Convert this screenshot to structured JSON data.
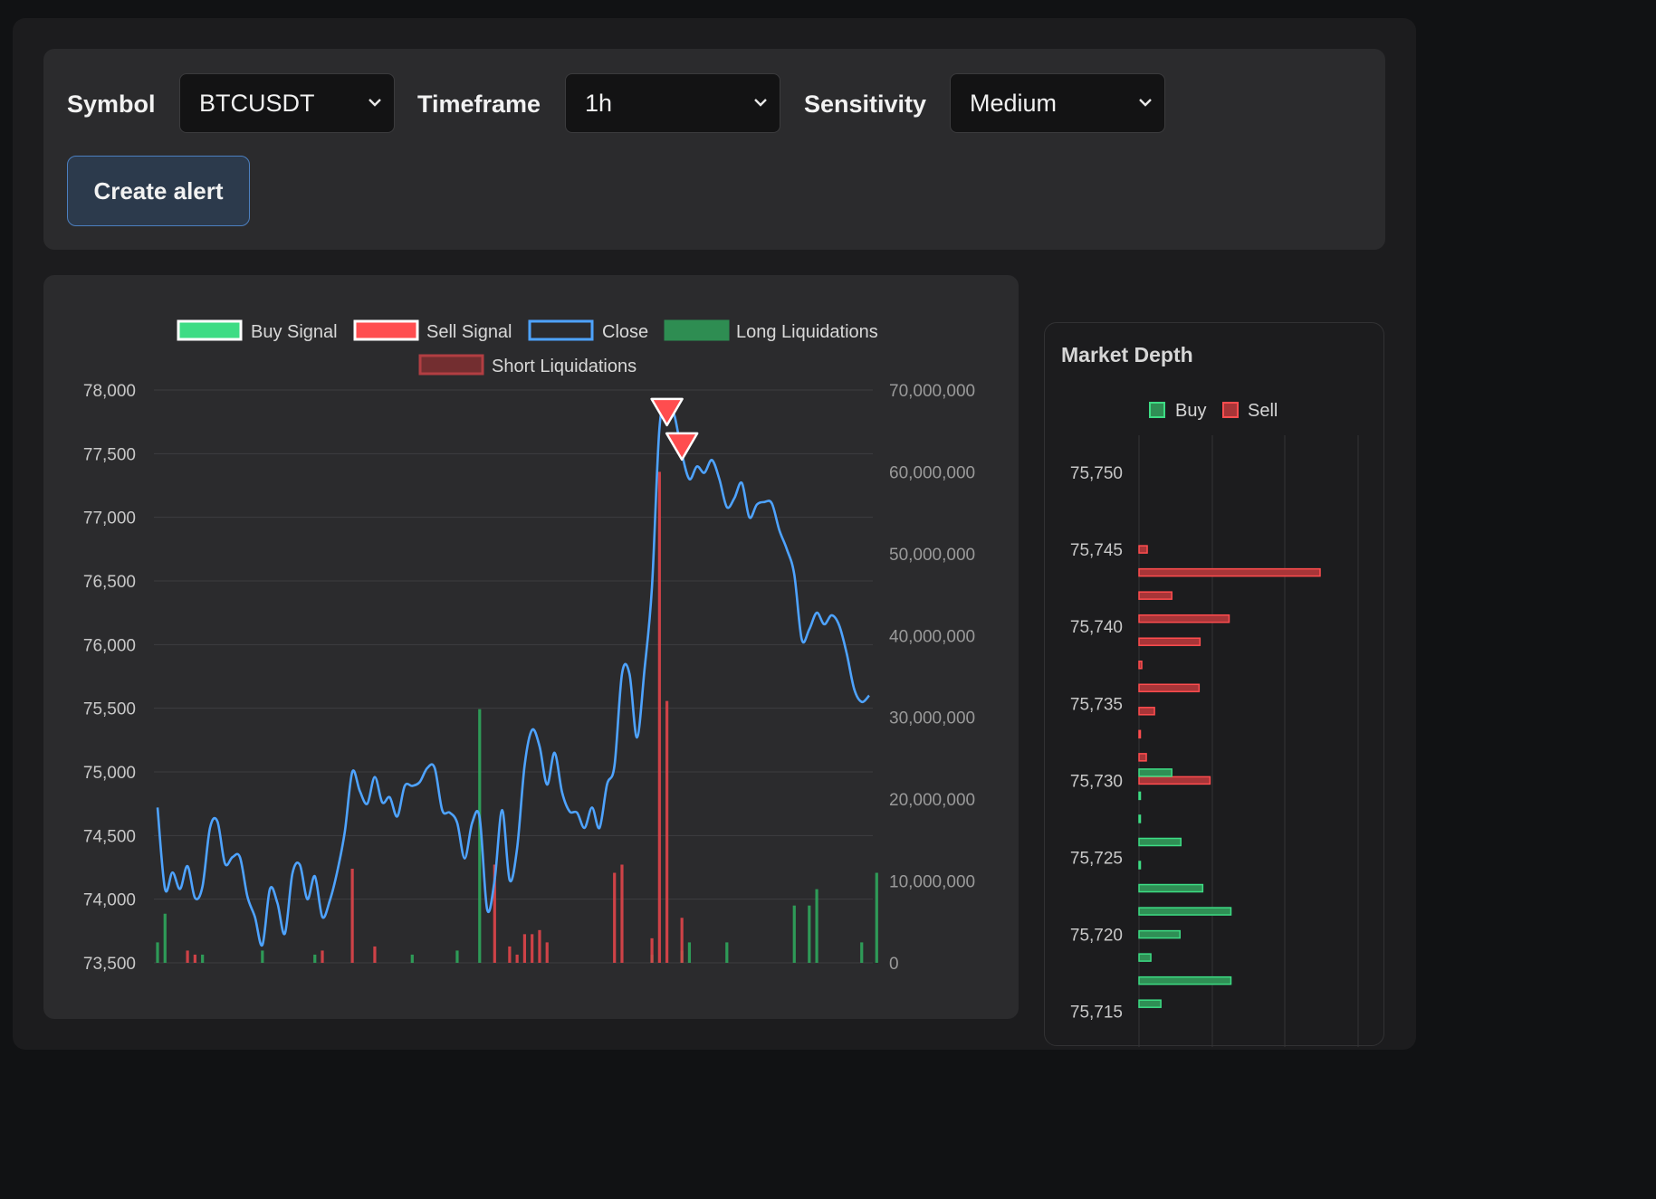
{
  "controls": {
    "symbol_label": "Symbol",
    "symbol_value": "BTCUSDT",
    "timeframe_label": "Timeframe",
    "timeframe_value": "1h",
    "sensitivity_label": "Sensitivity",
    "sensitivity_value": "Medium",
    "create_alert_label": "Create alert"
  },
  "colors": {
    "buy": "#3ddc84",
    "sell": "#ff4d4f",
    "close": "#4ea3ff",
    "long_liq": "#2fae5f",
    "short_liq": "#e0454a",
    "grid": "#3e3e40",
    "tick": "#c8c8c8"
  },
  "chart_data": {
    "type": "line",
    "legend": [
      "Buy Signal",
      "Sell Signal",
      "Close",
      "Long Liquidations",
      "Short Liquidations"
    ],
    "y_left": {
      "min": 73500,
      "max": 78000,
      "ticks": [
        "78,000",
        "77,500",
        "77,000",
        "76,500",
        "76,000",
        "75,500",
        "75,000",
        "74,500",
        "74,000",
        "73,500"
      ]
    },
    "y_right": {
      "min": 0,
      "max": 70000000,
      "ticks": [
        "70,000,000",
        "60,000,000",
        "50,000,000",
        "40,000,000",
        "30,000,000",
        "20,000,000",
        "10,000,000",
        "0"
      ]
    },
    "close": [
      74720,
      74080,
      74210,
      74080,
      74260,
      74010,
      74100,
      74560,
      74610,
      74280,
      74330,
      74330,
      74020,
      73860,
      73640,
      74080,
      73970,
      73730,
      74200,
      74270,
      74000,
      74180,
      73860,
      73990,
      74220,
      74530,
      75000,
      74850,
      74750,
      74960,
      74760,
      74800,
      74650,
      74890,
      74890,
      74920,
      75030,
      75030,
      74700,
      74680,
      74600,
      74320,
      74600,
      74640,
      73920,
      74150,
      74700,
      74150,
      74400,
      75050,
      75330,
      75200,
      74900,
      75150,
      74840,
      74690,
      74680,
      74560,
      74720,
      74560,
      74900,
      75050,
      75770,
      75770,
      75270,
      75800,
      76450,
      77700,
      77900,
      77800,
      77500,
      77300,
      77400,
      77350,
      77450,
      77300,
      77080,
      77150,
      77270,
      77000,
      77100,
      77120,
      77110,
      76900,
      76750,
      76550,
      76040,
      76120,
      76250,
      76160,
      76230,
      76150,
      75930,
      75650,
      75550,
      75600
    ],
    "sell_signals": [
      {
        "index": 68,
        "price": 77830
      },
      {
        "index": 70,
        "price": 77560
      }
    ],
    "long_liquidations": [
      {
        "index": 0,
        "value": 2500000
      },
      {
        "index": 1,
        "value": 6000000
      },
      {
        "index": 6,
        "value": 1000000
      },
      {
        "index": 14,
        "value": 1500000
      },
      {
        "index": 21,
        "value": 1000000
      },
      {
        "index": 34,
        "value": 1000000
      },
      {
        "index": 40,
        "value": 1500000
      },
      {
        "index": 43,
        "value": 31000000
      },
      {
        "index": 66,
        "value": 1000000
      },
      {
        "index": 70,
        "value": 1500000
      },
      {
        "index": 71,
        "value": 2500000
      },
      {
        "index": 76,
        "value": 2500000
      },
      {
        "index": 85,
        "value": 7000000
      },
      {
        "index": 87,
        "value": 7000000
      },
      {
        "index": 88,
        "value": 9000000
      },
      {
        "index": 94,
        "value": 2500000
      },
      {
        "index": 96,
        "value": 11000000
      }
    ],
    "short_liquidations": [
      {
        "index": 4,
        "value": 1500000
      },
      {
        "index": 5,
        "value": 1000000
      },
      {
        "index": 22,
        "value": 1500000
      },
      {
        "index": 26,
        "value": 11500000
      },
      {
        "index": 29,
        "value": 2000000
      },
      {
        "index": 45,
        "value": 12000000
      },
      {
        "index": 47,
        "value": 2000000
      },
      {
        "index": 48,
        "value": 1000000
      },
      {
        "index": 49,
        "value": 3500000
      },
      {
        "index": 50,
        "value": 3500000
      },
      {
        "index": 51,
        "value": 4000000
      },
      {
        "index": 52,
        "value": 2500000
      },
      {
        "index": 61,
        "value": 11000000
      },
      {
        "index": 62,
        "value": 12000000
      },
      {
        "index": 66,
        "value": 3000000
      },
      {
        "index": 67,
        "value": 60000000
      },
      {
        "index": 68,
        "value": 32000000
      },
      {
        "index": 70,
        "value": 5500000
      }
    ]
  },
  "depth": {
    "title": "Market Depth",
    "legend": [
      "Buy",
      "Sell"
    ],
    "ticks": [
      "75,750",
      "75,745",
      "75,740",
      "75,735",
      "75,730",
      "75,725",
      "75,720",
      "75,715"
    ],
    "sell_levels": [
      {
        "price": 75745.0,
        "amount": 0.9
      },
      {
        "price": 75743.5,
        "amount": 19.9
      },
      {
        "price": 75742.0,
        "amount": 3.6
      },
      {
        "price": 75740.5,
        "amount": 9.9
      },
      {
        "price": 75739.0,
        "amount": 6.7
      },
      {
        "price": 75737.5,
        "amount": 0.3
      },
      {
        "price": 75736.0,
        "amount": 6.6
      },
      {
        "price": 75734.5,
        "amount": 1.7
      },
      {
        "price": 75733.0,
        "amount": 0.1
      },
      {
        "price": 75731.5,
        "amount": 0.8
      },
      {
        "price": 75730.0,
        "amount": 7.8
      }
    ],
    "buy_levels": [
      {
        "price": 75730.5,
        "amount": 3.6
      },
      {
        "price": 75729.0,
        "amount": 0.1
      },
      {
        "price": 75727.5,
        "amount": 0.1
      },
      {
        "price": 75726.0,
        "amount": 4.6
      },
      {
        "price": 75724.5,
        "amount": 0.1
      },
      {
        "price": 75723.0,
        "amount": 7.0
      },
      {
        "price": 75721.5,
        "amount": 10.1
      },
      {
        "price": 75720.0,
        "amount": 4.5
      },
      {
        "price": 75718.5,
        "amount": 1.3
      },
      {
        "price": 75717.0,
        "amount": 10.1
      },
      {
        "price": 75715.5,
        "amount": 2.4
      }
    ]
  }
}
